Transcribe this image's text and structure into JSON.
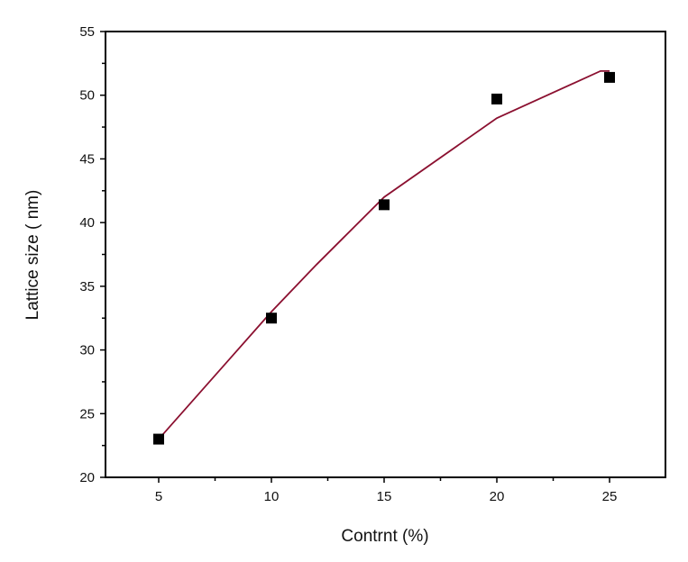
{
  "chart_data": {
    "type": "scatter",
    "title": "",
    "xlabel": "Contrnt (%)",
    "ylabel": "Lattice size ( nm)",
    "xlim": [
      2.64,
      27.48
    ],
    "ylim": [
      20,
      55
    ],
    "xticks": [
      5,
      10,
      15,
      20,
      25
    ],
    "yticks": [
      20,
      25,
      30,
      35,
      40,
      45,
      50,
      55
    ],
    "grid": false,
    "legend": "none",
    "series": [
      {
        "kind": "points",
        "marker": "square",
        "color": "#000000",
        "x": [
          5,
          10,
          15,
          20,
          25
        ],
        "y": [
          23.0,
          32.5,
          41.4,
          49.7,
          51.4
        ]
      },
      {
        "kind": "fit-line",
        "color": "#8b1030",
        "x": [
          5,
          10,
          12,
          15,
          20,
          24.6,
          25
        ],
        "y": [
          23.0,
          33.0,
          36.7,
          42.0,
          48.2,
          51.9,
          51.9
        ]
      }
    ]
  }
}
